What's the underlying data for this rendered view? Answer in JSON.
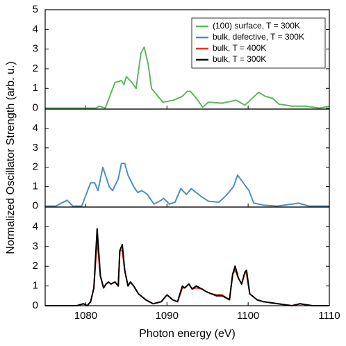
{
  "chart_data": [
    {
      "type": "line",
      "legend": "upper right",
      "xlim": [
        1075,
        1110
      ],
      "xticks": [
        1080,
        1090,
        1100,
        1110
      ],
      "ylim": [
        -0.05,
        5
      ],
      "yticks": [
        0,
        1,
        2,
        3,
        4,
        5
      ],
      "x": [
        1075,
        1081.2,
        1081.7,
        1082.4,
        1083.6,
        1084.4,
        1084.7,
        1085.0,
        1085.7,
        1086.2,
        1086.8,
        1087.2,
        1087.7,
        1088.1,
        1088.7,
        1089.5,
        1090.8,
        1091.9,
        1092.5,
        1092.9,
        1093.6,
        1094.4,
        1095.1,
        1096.8,
        1098.5,
        1099.6,
        1101.3,
        1102.1,
        1103.0,
        1103.8,
        1105.4,
        1107.1,
        1108.8,
        1110
      ],
      "series": [
        {
          "name": "(100) surface, T = 300K",
          "color": "#5cb85c",
          "values": [
            0,
            0,
            0.1,
            0,
            1.3,
            1.4,
            1.2,
            1.6,
            1.3,
            1.0,
            2.8,
            3.1,
            2.2,
            1.0,
            0.7,
            0.3,
            0.4,
            0.6,
            0.85,
            0.85,
            0.5,
            0.05,
            0.3,
            0.25,
            0.4,
            0.15,
            0.8,
            0.6,
            0.5,
            0.2,
            0.1,
            0.1,
            0,
            0.1
          ]
        }
      ]
    },
    {
      "type": "line",
      "ylabel": "Normalized Oscillator Strength (arb. u.)",
      "xlim": [
        1075,
        1110
      ],
      "xticks": [
        1080,
        1090,
        1100,
        1110
      ],
      "ylim": [
        -0.05,
        5
      ],
      "yticks": [
        0,
        1,
        2,
        3,
        4
      ],
      "x": [
        1075,
        1076.3,
        1077.7,
        1078.4,
        1079.5,
        1080.6,
        1081.1,
        1081.5,
        1082.1,
        1082.5,
        1082.9,
        1083.3,
        1084.0,
        1084.4,
        1084.8,
        1085.2,
        1085.9,
        1086.4,
        1086.9,
        1087.6,
        1088.4,
        1089.3,
        1089.6,
        1090.3,
        1091.0,
        1091.7,
        1092.4,
        1093.0,
        1093.6,
        1094.2,
        1095.1,
        1096.4,
        1097.2,
        1098.2,
        1098.7,
        1099.4,
        1100.1,
        1100.7,
        1101.9,
        1103.6,
        1105.4,
        1106.2,
        1107.5,
        1110
      ],
      "series": [
        {
          "name": "bulk, defective, T = 300K",
          "color": "#4a90c4",
          "values": [
            0,
            0,
            0.3,
            0,
            0,
            1.2,
            1.2,
            0.8,
            2.0,
            1.5,
            1.0,
            0.8,
            1.4,
            2.2,
            2.2,
            1.6,
            1.0,
            0.7,
            0.8,
            0.6,
            0.1,
            0.3,
            0.4,
            0.1,
            0.2,
            0.9,
            0.6,
            0.9,
            0.7,
            0.5,
            0.25,
            0.2,
            0.5,
            1.0,
            1.6,
            1.2,
            0.8,
            0.15,
            0.05,
            0,
            0.1,
            0.15,
            0,
            0
          ]
        }
      ]
    },
    {
      "type": "line",
      "xlabel": "Photon energy (eV)",
      "xlim": [
        1075,
        1110
      ],
      "xticks": [
        1080,
        1090,
        1100,
        1110
      ],
      "ylim": [
        0,
        5
      ],
      "yticks": [
        0,
        1,
        2,
        3,
        4
      ],
      "x": [
        1075,
        1078.9,
        1079.7,
        1080.2,
        1080.6,
        1081.0,
        1081.4,
        1081.8,
        1082.2,
        1082.5,
        1082.8,
        1083.1,
        1083.6,
        1084.0,
        1084.2,
        1084.5,
        1084.8,
        1085.2,
        1085.5,
        1085.9,
        1086.5,
        1087.4,
        1088.3,
        1089.3,
        1090.0,
        1090.7,
        1091.3,
        1091.9,
        1092.2,
        1092.7,
        1093.1,
        1093.6,
        1094.3,
        1094.9,
        1095.5,
        1096.1,
        1096.8,
        1097.7,
        1098.1,
        1098.4,
        1098.8,
        1099.2,
        1099.6,
        1099.8,
        1100.2,
        1101.1,
        1101.9,
        1103.7,
        1105.4,
        1106.4,
        1107.9,
        1110
      ],
      "series": [
        {
          "name": "bulk, T = 400K",
          "color": "#e0352b",
          "values": [
            0,
            0,
            0.1,
            0,
            0.2,
            0.9,
            3.3,
            1.5,
            0.9,
            1.1,
            1.2,
            1.1,
            1.2,
            1.0,
            2.8,
            2.8,
            1.8,
            1.0,
            1.2,
            1.0,
            0.6,
            0.3,
            0.1,
            0.2,
            0.55,
            0.3,
            0.2,
            0.9,
            0.9,
            1.1,
            0.85,
            0.9,
            0.85,
            0.7,
            0.6,
            0.55,
            0.55,
            0.3,
            1.6,
            1.8,
            1.4,
            1.1,
            1.7,
            1.6,
            0.6,
            0.3,
            0.2,
            0.1,
            0.0,
            0.1,
            0,
            0
          ]
        },
        {
          "name": "bulk, T = 300K",
          "color": "#000000",
          "values": [
            0,
            0,
            0.1,
            0,
            0.2,
            0.9,
            3.9,
            1.5,
            0.9,
            1.1,
            1.2,
            1.1,
            1.2,
            1.0,
            2.8,
            3.1,
            1.8,
            1.0,
            1.2,
            1.0,
            0.6,
            0.3,
            0.1,
            0.2,
            0.55,
            0.3,
            0.2,
            1.0,
            0.9,
            1.1,
            0.85,
            1.0,
            0.85,
            0.7,
            0.6,
            0.5,
            0.5,
            0.3,
            1.6,
            2.0,
            1.4,
            1.1,
            1.7,
            1.8,
            0.6,
            0.3,
            0.2,
            0.1,
            0.0,
            0.1,
            0,
            0
          ]
        }
      ]
    }
  ]
}
